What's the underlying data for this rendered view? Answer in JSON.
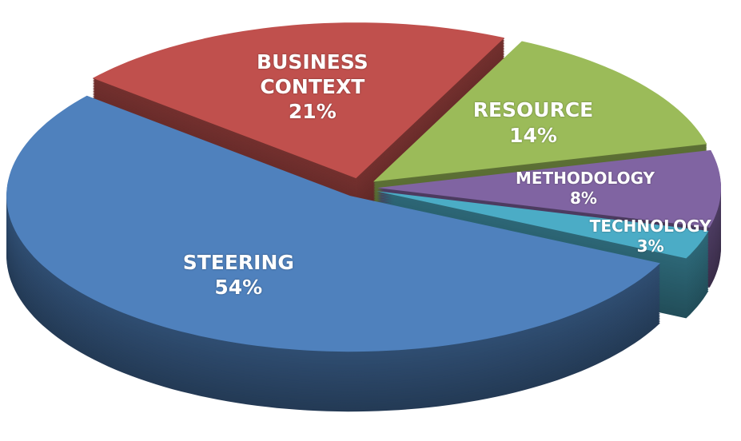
{
  "chart_data": {
    "type": "pie",
    "categories": [
      "BUSINESS CONTEXT",
      "RESOURCE",
      "METHODOLOGY",
      "TECHNOLOGY",
      "STEERING"
    ],
    "values": [
      21,
      14,
      8,
      3,
      54
    ],
    "value_labels": [
      "21%",
      "14%",
      "8%",
      "3%",
      "54%"
    ],
    "colors": [
      "#c0504d",
      "#9bbb59",
      "#8064a2",
      "#4bacc6",
      "#4f81bd"
    ]
  }
}
